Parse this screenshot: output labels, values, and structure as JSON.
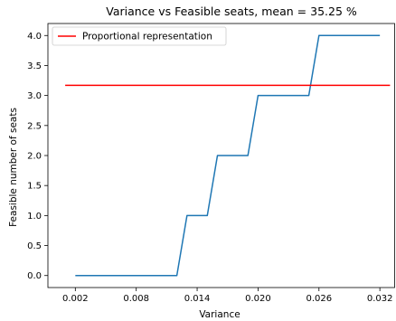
{
  "chart_data": {
    "type": "line",
    "title": "Variance vs Feasible seats, mean = 35.25 %",
    "xlabel": "Variance",
    "ylabel": "Feasible number of seats",
    "xlim": [
      -0.0007,
      0.0335
    ],
    "ylim": [
      -0.2,
      4.2
    ],
    "xticks": [
      0.002,
      0.008,
      0.014,
      0.02,
      0.026,
      0.032
    ],
    "xtick_labels": [
      "0.002",
      "0.008",
      "0.014",
      "0.020",
      "0.026",
      "0.032"
    ],
    "yticks": [
      0.0,
      0.5,
      1.0,
      1.5,
      2.0,
      2.5,
      3.0,
      3.5,
      4.0
    ],
    "ytick_labels": [
      "0.0",
      "0.5",
      "1.0",
      "1.5",
      "2.0",
      "2.5",
      "3.0",
      "3.5",
      "4.0"
    ],
    "grid": false,
    "legend_position": "top-left",
    "series": [
      {
        "name": "",
        "color": "#1f77b4",
        "x": [
          0.002,
          0.012,
          0.013,
          0.015,
          0.016,
          0.019,
          0.02,
          0.025,
          0.026,
          0.032
        ],
        "y": [
          0,
          0,
          1,
          1,
          2,
          2,
          3,
          3,
          4,
          4
        ]
      },
      {
        "name": "Proportional representation",
        "color": "#ff0000",
        "x": [
          0.001,
          0.033
        ],
        "y": [
          3.17,
          3.17
        ]
      }
    ]
  }
}
